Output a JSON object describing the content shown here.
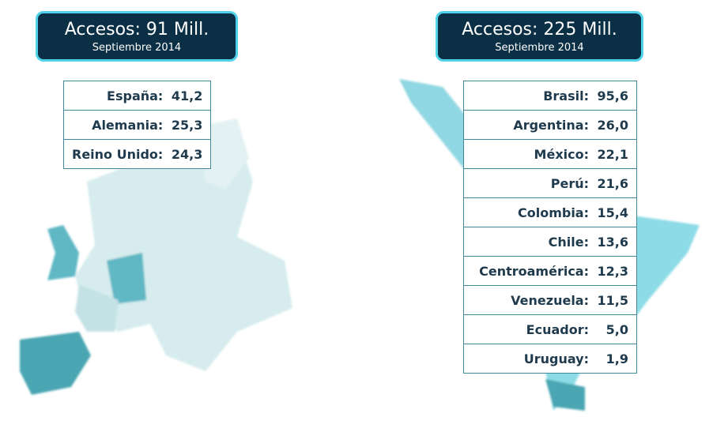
{
  "europe": {
    "title": "Accesos: 91 Mill.",
    "subtitle": "Septiembre 2014",
    "rows": [
      {
        "country": "España:",
        "value": "41,2"
      },
      {
        "country": "Alemania:",
        "value": "25,3"
      },
      {
        "country": "Reino Unido:",
        "value": "24,3"
      }
    ]
  },
  "latam": {
    "title": "Accesos: 225 Mill.",
    "subtitle": "Septiembre 2014",
    "rows": [
      {
        "country": "Brasil:",
        "value": "95,6"
      },
      {
        "country": "Argentina:",
        "value": "26,0"
      },
      {
        "country": "México:",
        "value": "22,1"
      },
      {
        "country": "Perú:",
        "value": "21,6"
      },
      {
        "country": "Colombia:",
        "value": "15,4"
      },
      {
        "country": "Chile:",
        "value": "13,6"
      },
      {
        "country": "Centroamérica:",
        "value": "12,3"
      },
      {
        "country": "Venezuela:",
        "value": "11,5"
      },
      {
        "country": "Ecuador:",
        "value": "5,0"
      },
      {
        "country": "Uruguay:",
        "value": "1,9"
      }
    ]
  },
  "colors": {
    "header_bg": "#0b2f45",
    "header_border": "#4fd2ea",
    "table_border": "#3f8a96",
    "highlight": "#5fb8c4"
  }
}
